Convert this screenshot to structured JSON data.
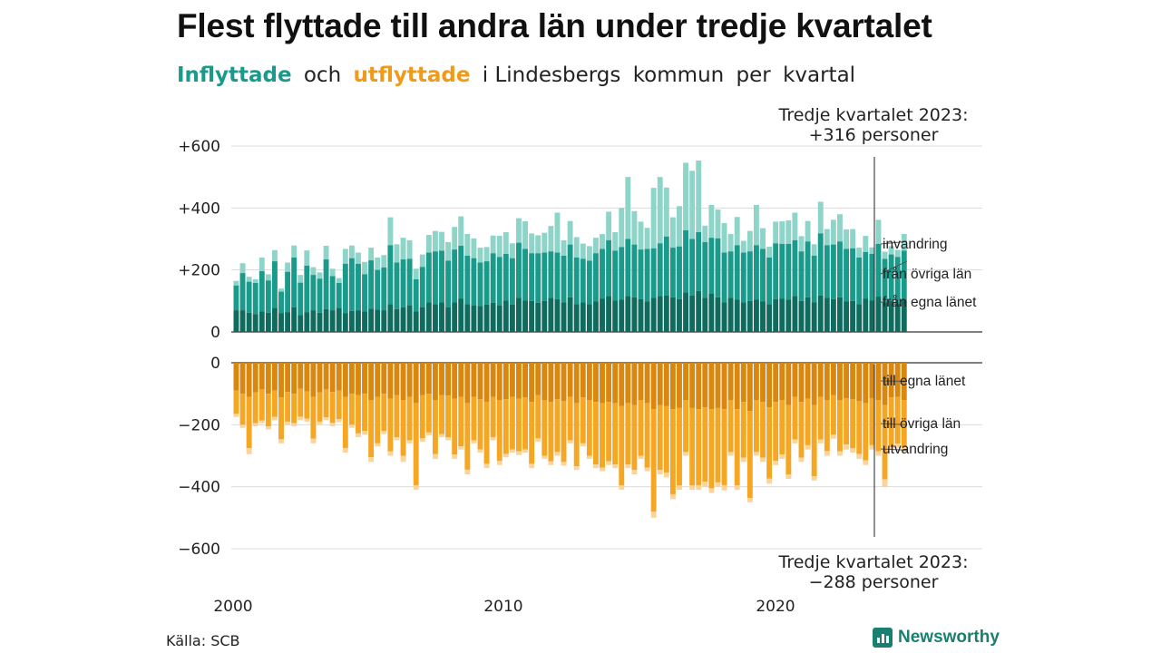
{
  "title": "Flest flyttade till andra län under tredje kvartalet",
  "subtitle": {
    "in_word": "Inflyttade",
    "and": "och",
    "out_word": "utflyttade",
    "rest1": "i Lindesbergs",
    "rest2": "kommun",
    "rest3": "per",
    "rest4": "kvartal"
  },
  "source": "Källa: SCB",
  "logo_text": "Newsworthy",
  "colors": {
    "in_own": "#0f6b5d",
    "in_other": "#1a9a8a",
    "in_abroad": "#8fd4c9",
    "out_own": "#d9870f",
    "out_other": "#f5a623",
    "out_abroad": "#fad49a",
    "subtitle_in": "#1a9a8a",
    "subtitle_out": "#f09a1a"
  },
  "chart_data": {
    "type": "bar",
    "x_start": "2000 Q1",
    "x_ticks": [
      "2000",
      "2010",
      "2020"
    ],
    "ylim_in": [
      0,
      600
    ],
    "ylim_out": [
      -600,
      0
    ],
    "yticks_in": [
      "+600",
      "+400",
      "+200",
      "0"
    ],
    "yticks_out": [
      "0",
      "−200",
      "−400",
      "−600"
    ],
    "series_in_labels": [
      "invandring",
      "från övriga län",
      "från egna länet"
    ],
    "series_out_labels": [
      "till egna länet",
      "till övriga län",
      "utvandring"
    ],
    "annotation_top": [
      "Tredje kvartalet 2023:",
      "+316 personer"
    ],
    "annotation_bottom": [
      "Tredje kvartalet 2023:",
      "−288 personer"
    ],
    "inflyttade_total": [
      165,
      222,
      178,
      170,
      240,
      186,
      264,
      140,
      224,
      279,
      184,
      263,
      209,
      192,
      278,
      204,
      174,
      268,
      279,
      256,
      226,
      272,
      240,
      248,
      370,
      283,
      304,
      296,
      204,
      250,
      313,
      326,
      323,
      290,
      339,
      373,
      316,
      302,
      272,
      274,
      311,
      310,
      322,
      286,
      367,
      357,
      318,
      312,
      320,
      342,
      385,
      296,
      358,
      306,
      285,
      277,
      304,
      316,
      388,
      322,
      400,
      500,
      390,
      356,
      336,
      465,
      500,
      466,
      370,
      406,
      546,
      520,
      553,
      343,
      410,
      395,
      351,
      316,
      371,
      294,
      326,
      410,
      335,
      275,
      356,
      357,
      360,
      385,
      309,
      358,
      283,
      420,
      332,
      362,
      380,
      331,
      332,
      272,
      310,
      273,
      362,
      259,
      277,
      265,
      316
    ],
    "inflyttade_own": [
      70,
      70,
      62,
      58,
      66,
      62,
      78,
      60,
      64,
      80,
      55,
      64,
      70,
      62,
      74,
      70,
      78,
      60,
      68,
      70,
      66,
      75,
      72,
      70,
      90,
      74,
      80,
      86,
      66,
      80,
      96,
      90,
      96,
      80,
      96,
      108,
      90,
      86,
      84,
      88,
      94,
      86,
      102,
      88,
      110,
      102,
      100,
      94,
      100,
      110,
      106,
      96,
      112,
      90,
      96,
      90,
      98,
      108,
      116,
      102,
      104,
      116,
      112,
      106,
      98,
      110,
      116,
      118,
      112,
      106,
      128,
      118,
      132,
      110,
      124,
      112,
      96,
      110,
      104,
      96,
      100,
      104,
      98,
      90,
      106,
      108,
      104,
      116,
      100,
      112,
      96,
      118,
      110,
      106,
      112,
      98,
      100,
      90,
      108,
      102,
      114,
      96,
      100,
      92,
      104
    ],
    "inflyttade_other": [
      80,
      120,
      100,
      100,
      130,
      104,
      150,
      70,
      130,
      160,
      104,
      150,
      114,
      110,
      160,
      110,
      80,
      160,
      170,
      150,
      120,
      156,
      128,
      138,
      190,
      150,
      154,
      150,
      104,
      130,
      160,
      170,
      166,
      150,
      170,
      170,
      156,
      152,
      140,
      140,
      160,
      156,
      150,
      150,
      178,
      166,
      154,
      160,
      156,
      150,
      150,
      150,
      170,
      150,
      140,
      140,
      156,
      160,
      180,
      160,
      170,
      184,
      170,
      160,
      170,
      160,
      170,
      190,
      160,
      170,
      200,
      182,
      190,
      180,
      180,
      190,
      160,
      150,
      176,
      160,
      160,
      176,
      170,
      150,
      180,
      176,
      180,
      180,
      160,
      180,
      150,
      200,
      170,
      176,
      180,
      170,
      170,
      150,
      150,
      150,
      170,
      140,
      150,
      150,
      158
    ],
    "utflyttade_total": [
      -175,
      -210,
      -295,
      -205,
      -195,
      -215,
      -185,
      -260,
      -200,
      -205,
      -185,
      -190,
      -260,
      -200,
      -185,
      -205,
      -192,
      -290,
      -210,
      -240,
      -232,
      -320,
      -270,
      -230,
      -300,
      -250,
      -320,
      -260,
      -410,
      -255,
      -235,
      -310,
      -240,
      -250,
      -310,
      -280,
      -360,
      -260,
      -290,
      -340,
      -250,
      -330,
      -305,
      -290,
      -298,
      -290,
      -340,
      -255,
      -310,
      -330,
      -300,
      -332,
      -260,
      -346,
      -270,
      -310,
      -340,
      -350,
      -330,
      -340,
      -410,
      -340,
      -360,
      -310,
      -350,
      -500,
      -360,
      -370,
      -440,
      -410,
      -300,
      -410,
      -410,
      -400,
      -420,
      -400,
      -412,
      -300,
      -410,
      -320,
      -450,
      -300,
      -320,
      -390,
      -330,
      -310,
      -375,
      -260,
      -320,
      -280,
      -380,
      -260,
      -300,
      -245,
      -300,
      -280,
      -290,
      -310,
      -330,
      -280,
      -300,
      -400,
      -280,
      -275,
      -288
    ],
    "utflyttade_own": [
      -90,
      -100,
      -110,
      -95,
      -86,
      -100,
      -90,
      -112,
      -94,
      -100,
      -84,
      -92,
      -110,
      -96,
      -86,
      -94,
      -90,
      -110,
      -100,
      -104,
      -100,
      -120,
      -110,
      -100,
      -116,
      -104,
      -120,
      -110,
      -130,
      -104,
      -100,
      -120,
      -104,
      -106,
      -116,
      -110,
      -130,
      -110,
      -118,
      -126,
      -110,
      -120,
      -118,
      -110,
      -116,
      -112,
      -126,
      -104,
      -120,
      -126,
      -118,
      -124,
      -110,
      -130,
      -112,
      -120,
      -126,
      -130,
      -126,
      -130,
      -140,
      -130,
      -136,
      -120,
      -130,
      -150,
      -136,
      -140,
      -150,
      -146,
      -120,
      -146,
      -150,
      -144,
      -150,
      -146,
      -150,
      -120,
      -150,
      -126,
      -156,
      -120,
      -126,
      -144,
      -126,
      -120,
      -136,
      -110,
      -126,
      -116,
      -136,
      -110,
      -120,
      -104,
      -120,
      -114,
      -118,
      -124,
      -130,
      -114,
      -120,
      -136,
      -112,
      -110,
      -120
    ],
    "utflyttade_other": [
      -75,
      -100,
      -165,
      -100,
      -100,
      -105,
      -85,
      -135,
      -96,
      -95,
      -90,
      -88,
      -135,
      -94,
      -90,
      -100,
      -92,
      -165,
      -100,
      -124,
      -120,
      -185,
      -150,
      -120,
      -170,
      -136,
      -180,
      -140,
      -265,
      -140,
      -125,
      -175,
      -126,
      -134,
      -180,
      -160,
      -215,
      -140,
      -162,
      -200,
      -130,
      -196,
      -176,
      -170,
      -170,
      -168,
      -200,
      -140,
      -180,
      -192,
      -170,
      -196,
      -140,
      -204,
      -148,
      -180,
      -202,
      -208,
      -192,
      -198,
      -256,
      -198,
      -210,
      -180,
      -208,
      -330,
      -210,
      -214,
      -275,
      -250,
      -168,
      -250,
      -245,
      -240,
      -255,
      -240,
      -245,
      -168,
      -245,
      -180,
      -280,
      -168,
      -180,
      -230,
      -190,
      -176,
      -225,
      -138,
      -180,
      -150,
      -230,
      -138,
      -165,
      -128,
      -166,
      -150,
      -158,
      -170,
      -185,
      -152,
      -166,
      -240,
      -156,
      -151,
      -152
    ]
  }
}
